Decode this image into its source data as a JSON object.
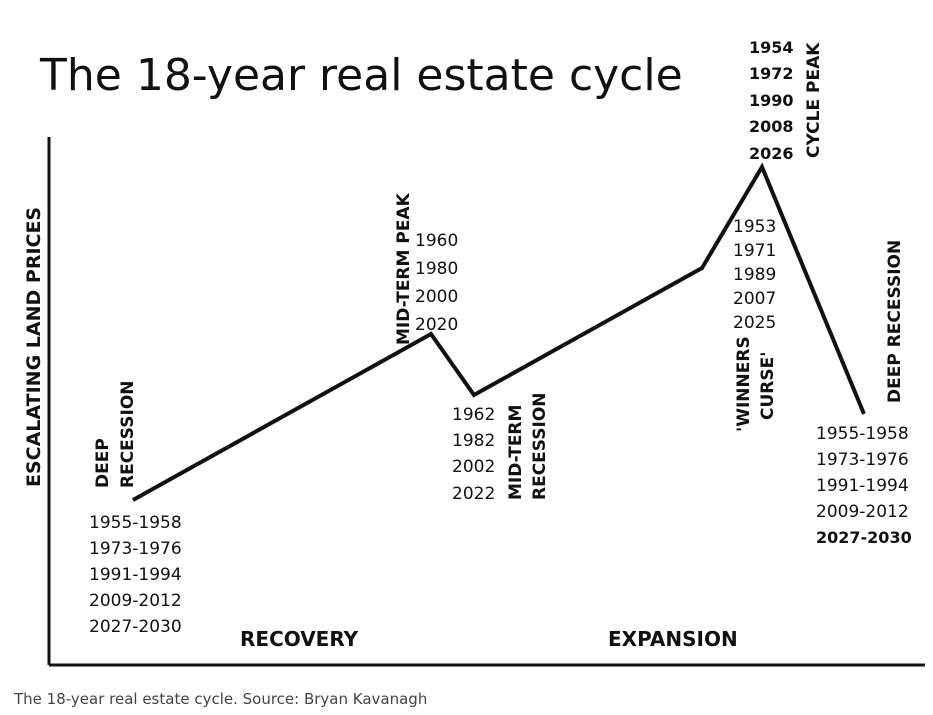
{
  "title": "The 18-year real estate cycle",
  "y_axis_label": "ESCALATING LAND PRICES",
  "phases": {
    "recovery": "RECOVERY",
    "expansion": "EXPANSION"
  },
  "points": {
    "deep_recession_start": {
      "label_line1": "DEEP",
      "label_line2": "RECESSION",
      "years": [
        "1955-1958",
        "1973-1976",
        "1991-1994",
        "2009-2012",
        "2027-2030"
      ]
    },
    "mid_term_peak": {
      "label": "MID-TERM PEAK",
      "years": [
        "1960",
        "1980",
        "2000",
        "2020"
      ]
    },
    "mid_term_recession": {
      "label_line1": "MID-TERM",
      "label_line2": "RECESSION",
      "years": [
        "1962",
        "1982",
        "2002",
        "2022"
      ]
    },
    "winners_curse": {
      "label_line1": "'WINNERS",
      "label_line2": "CURSE'",
      "years": [
        "1953",
        "1971",
        "1989",
        "2007",
        "2025"
      ]
    },
    "cycle_peak": {
      "label": "CYCLE PEAK",
      "years": [
        "1954",
        "1972",
        "1990",
        "2008",
        "2026"
      ]
    },
    "deep_recession_end": {
      "label": "DEEP RECESSION",
      "years": [
        "1955-1958",
        "1973-1976",
        "1991-1994",
        "2009-2012",
        "2027-2030"
      ]
    }
  },
  "caption": "The 18-year real estate cycle. Source: Bryan Kavanagh"
}
